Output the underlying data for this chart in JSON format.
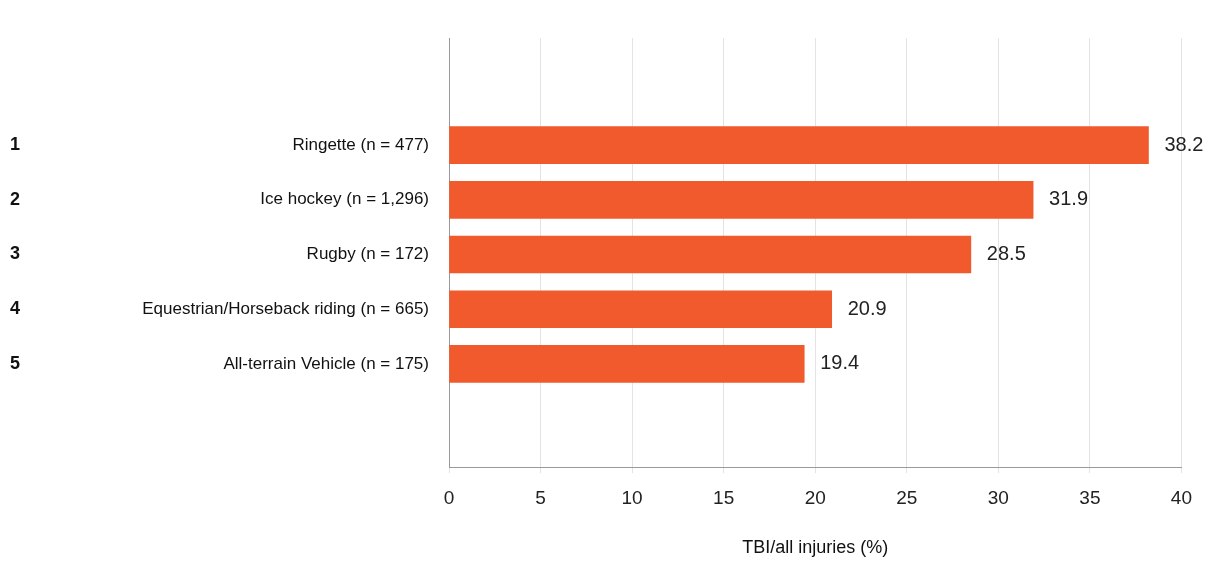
{
  "chart_data": {
    "type": "bar",
    "orientation": "horizontal",
    "xlabel": "TBI/all injuries (%)",
    "categories": [
      "Ringette (n = 477)",
      "Ice hockey (n = 1,296)",
      "Rugby (n = 172)",
      "Equestrian/Horseback riding (n = 665)",
      "All-terrain Vehicle (n = 175)"
    ],
    "annotations": [
      "1",
      "2",
      "3",
      "4",
      "5"
    ],
    "values": [
      38.2,
      31.9,
      28.5,
      20.9,
      19.4
    ],
    "color": "#f05a2c",
    "xlim": [
      0,
      40
    ],
    "xticks": [
      0,
      5,
      10,
      15,
      20,
      25,
      30,
      35,
      40
    ],
    "grid": "x",
    "legend": false,
    "data_labels": true
  }
}
